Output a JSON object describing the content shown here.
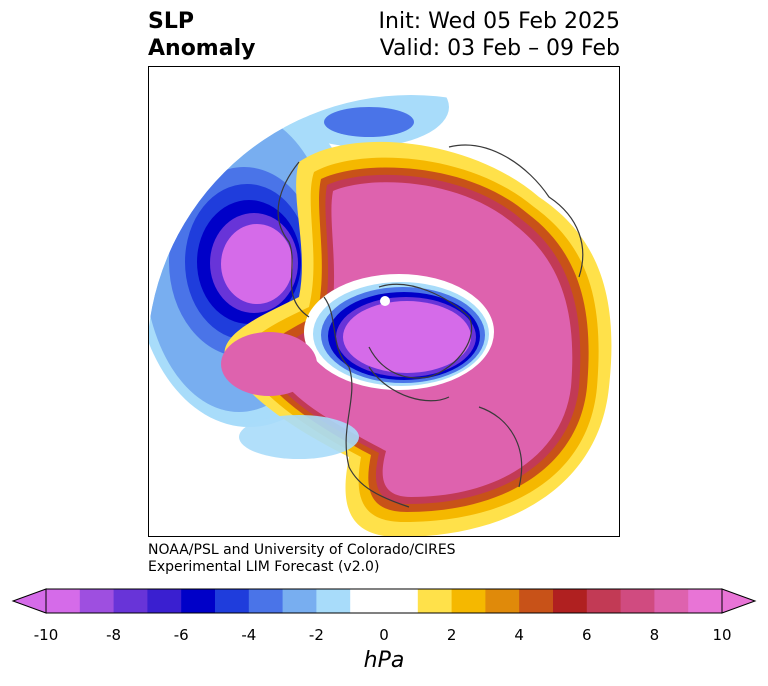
{
  "title": {
    "variable_line1": "SLP",
    "variable_line2": "Anomaly",
    "init": "Init: Wed 05 Feb 2025",
    "valid": "Valid: 03 Feb – 09 Feb"
  },
  "credit": {
    "line1": "NOAA/PSL and University of Colorado/CIRES",
    "line2": "Experimental LIM Forecast (v2.0)"
  },
  "colorbar": {
    "unit": "hPa",
    "tick_labels": [
      "-10",
      "-8",
      "-6",
      "-4",
      "-2",
      "0",
      "2",
      "4",
      "6",
      "8",
      "10"
    ],
    "colors": [
      "#d56be9",
      "#9e4fe0",
      "#6834d8",
      "#3a1fd0",
      "#0000c8",
      "#1f3ddc",
      "#4a74e8",
      "#78aef0",
      "#a8dcfa",
      "#ffffff",
      "#ffffff",
      "#ffe14a",
      "#f5b800",
      "#e08a0a",
      "#c85218",
      "#b02020",
      "#c23a55",
      "#d04b80",
      "#de62ae",
      "#e874d6"
    ]
  },
  "colors": {
    "strong_negative": "#0000c8",
    "strong_positive": "#de62ae",
    "coastline": "#3a3a3a"
  }
}
